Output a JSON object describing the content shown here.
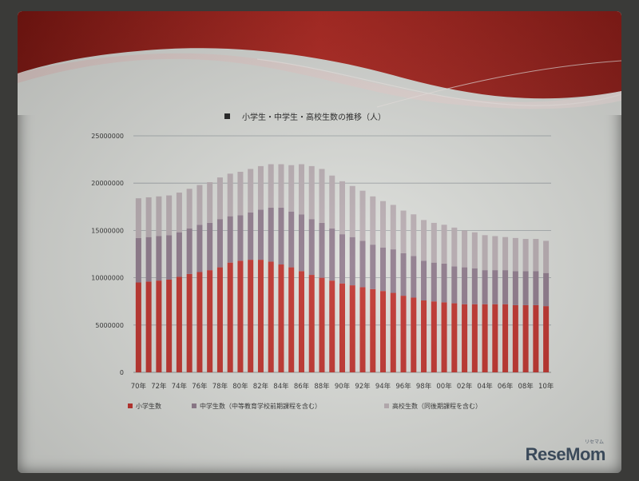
{
  "chart_data": {
    "type": "bar",
    "stacked": true,
    "title": "小学生・中学生・高校生数の推移（人）",
    "categories": [
      "70",
      "71",
      "72",
      "73",
      "74",
      "75",
      "76",
      "77",
      "78",
      "79",
      "80",
      "81",
      "82",
      "83",
      "84",
      "85",
      "86",
      "87",
      "88",
      "89",
      "90",
      "91",
      "92",
      "93",
      "94",
      "95",
      "96",
      "97",
      "98",
      "99",
      "00",
      "01",
      "02",
      "03",
      "04",
      "05",
      "06",
      "07",
      "08",
      "09",
      "10"
    ],
    "tick_labels": [
      "70年",
      "72年",
      "74年",
      "76年",
      "78年",
      "80年",
      "82年",
      "84年",
      "86年",
      "88年",
      "90年",
      "92年",
      "94年",
      "96年",
      "98年",
      "00年",
      "02年",
      "04年",
      "06年",
      "08年",
      "10年"
    ],
    "y_tick_labels": [
      "0",
      "5000000",
      "10000000",
      "15000000",
      "20000000",
      "25000000"
    ],
    "ylim": [
      0,
      25000000
    ],
    "grid": true,
    "legend_position": "bottom",
    "series": [
      {
        "name": "小学生数",
        "color": "#c0302a",
        "values": [
          9500000,
          9600000,
          9700000,
          9800000,
          10100000,
          10400000,
          10600000,
          10800000,
          11100000,
          11600000,
          11800000,
          11900000,
          11900000,
          11700000,
          11400000,
          11100000,
          10700000,
          10300000,
          10000000,
          9700000,
          9400000,
          9200000,
          9000000,
          8800000,
          8600000,
          8400000,
          8100000,
          7900000,
          7600000,
          7500000,
          7400000,
          7300000,
          7200000,
          7200000,
          7200000,
          7200000,
          7200000,
          7100000,
          7100000,
          7100000,
          7000000
        ]
      },
      {
        "name": "中学生数（中等教育学校前期課程を含む）",
        "color": "#8f7a8c",
        "values": [
          4700000,
          4700000,
          4700000,
          4700000,
          4700000,
          4800000,
          5000000,
          5000000,
          5100000,
          4900000,
          4800000,
          5000000,
          5300000,
          5700000,
          6000000,
          5900000,
          6000000,
          5900000,
          5800000,
          5500000,
          5200000,
          5100000,
          4900000,
          4700000,
          4600000,
          4600000,
          4500000,
          4400000,
          4200000,
          4100000,
          4100000,
          3900000,
          3900000,
          3800000,
          3600000,
          3600000,
          3600000,
          3600000,
          3600000,
          3600000,
          3500000
        ]
      },
      {
        "name": "高校生数（同後期課程を含む）",
        "color": "#b9adb2",
        "values": [
          4200000,
          4200000,
          4200000,
          4200000,
          4200000,
          4200000,
          4200000,
          4300000,
          4400000,
          4500000,
          4600000,
          4600000,
          4600000,
          4600000,
          4600000,
          4900000,
          5300000,
          5600000,
          5700000,
          5600000,
          5600000,
          5400000,
          5300000,
          5100000,
          4900000,
          4700000,
          4500000,
          4400000,
          4300000,
          4200000,
          4100000,
          4100000,
          3900000,
          3800000,
          3700000,
          3600000,
          3500000,
          3500000,
          3400000,
          3400000,
          3400000
        ]
      }
    ]
  },
  "colors": {
    "primary": "#c0302a",
    "secondary": "#8f7a8c",
    "tertiary": "#b9adb2",
    "banner": "#a8211c"
  },
  "logo": {
    "text_main": "ReseMom",
    "kana": "リセマム"
  }
}
